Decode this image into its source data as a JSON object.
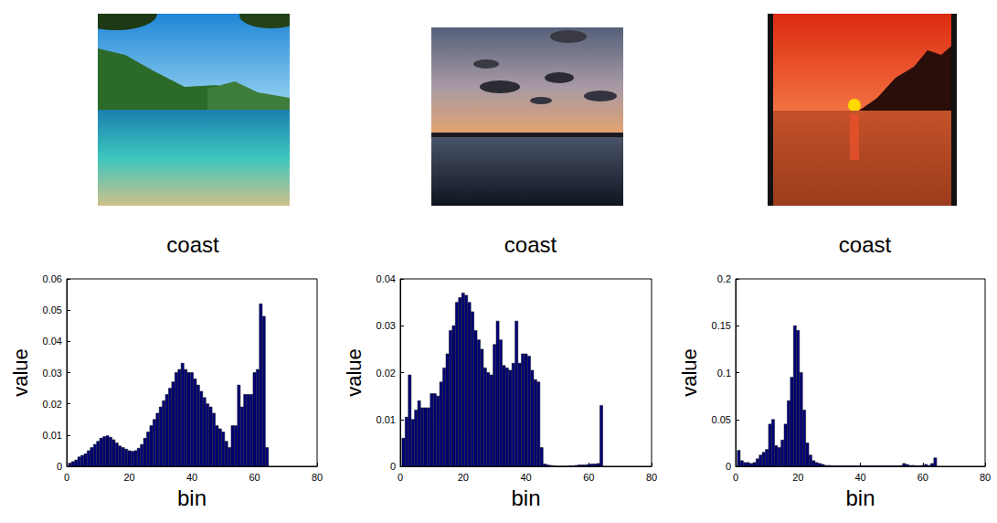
{
  "chart_data": [
    {
      "type": "bar",
      "title": "coast",
      "xlabel": "bin",
      "ylabel": "value",
      "color": "#00007a",
      "x": [
        1,
        2,
        3,
        4,
        5,
        6,
        7,
        8,
        9,
        10,
        11,
        12,
        13,
        14,
        15,
        16,
        17,
        18,
        19,
        20,
        21,
        22,
        23,
        24,
        25,
        26,
        27,
        28,
        29,
        30,
        31,
        32,
        33,
        34,
        35,
        36,
        37,
        38,
        39,
        40,
        41,
        42,
        43,
        44,
        45,
        46,
        47,
        48,
        49,
        50,
        51,
        52,
        53,
        54,
        55,
        56,
        57,
        58,
        59,
        60,
        61,
        62,
        63,
        64
      ],
      "values": [
        0.001,
        0.0015,
        0.002,
        0.003,
        0.0035,
        0.004,
        0.005,
        0.006,
        0.007,
        0.008,
        0.009,
        0.0095,
        0.0098,
        0.0093,
        0.0085,
        0.0075,
        0.0065,
        0.006,
        0.0055,
        0.005,
        0.0048,
        0.005,
        0.0058,
        0.007,
        0.009,
        0.011,
        0.013,
        0.015,
        0.017,
        0.019,
        0.021,
        0.023,
        0.025,
        0.027,
        0.03,
        0.031,
        0.033,
        0.031,
        0.03,
        0.03,
        0.028,
        0.026,
        0.024,
        0.022,
        0.02,
        0.019,
        0.017,
        0.013,
        0.012,
        0.011,
        0.008,
        0.006,
        0.013,
        0.013,
        0.026,
        0.019,
        0.023,
        0.023,
        0.023,
        0.03,
        0.031,
        0.052,
        0.048,
        0.006
      ],
      "xlim": [
        0,
        80
      ],
      "xticks": [
        0,
        20,
        40,
        60,
        80
      ],
      "ylim": [
        0,
        0.06
      ],
      "yticks": [
        0,
        0.01,
        0.02,
        0.03,
        0.04,
        0.05,
        0.06
      ]
    },
    {
      "type": "bar",
      "title": "coast",
      "xlabel": "bin",
      "ylabel": "value",
      "color": "#00007a",
      "x": [
        1,
        2,
        3,
        4,
        5,
        6,
        7,
        8,
        9,
        10,
        11,
        12,
        13,
        14,
        15,
        16,
        17,
        18,
        19,
        20,
        21,
        22,
        23,
        24,
        25,
        26,
        27,
        28,
        29,
        30,
        31,
        32,
        33,
        34,
        35,
        36,
        37,
        38,
        39,
        40,
        41,
        42,
        43,
        44,
        45,
        46,
        47,
        48,
        49,
        50,
        51,
        52,
        53,
        54,
        55,
        56,
        57,
        58,
        59,
        60,
        61,
        62,
        63,
        64
      ],
      "values": [
        0.006,
        0.0105,
        0.0195,
        0.01,
        0.012,
        0.014,
        0.0125,
        0.0125,
        0.0125,
        0.0155,
        0.0155,
        0.015,
        0.018,
        0.021,
        0.024,
        0.029,
        0.03,
        0.035,
        0.036,
        0.037,
        0.0365,
        0.035,
        0.033,
        0.029,
        0.027,
        0.025,
        0.021,
        0.02,
        0.0195,
        0.026,
        0.031,
        0.027,
        0.0215,
        0.021,
        0.0205,
        0.022,
        0.031,
        0.022,
        0.024,
        0.024,
        0.0235,
        0.0205,
        0.0185,
        0.018,
        0.004,
        0.0005,
        0.0003,
        0.0002,
        0.0001,
        0,
        0,
        0,
        0,
        0.0001,
        0.0001,
        0.0002,
        0.0003,
        0.0003,
        0.0003,
        0.0004,
        0.0005,
        0.0005,
        0.0006,
        0.013
      ],
      "xlim": [
        0,
        80
      ],
      "xticks": [
        0,
        20,
        40,
        60,
        80
      ],
      "ylim": [
        0,
        0.04
      ],
      "yticks": [
        0,
        0.01,
        0.02,
        0.03,
        0.04
      ]
    },
    {
      "type": "bar",
      "title": "coast",
      "xlabel": "bin",
      "ylabel": "value",
      "color": "#00007a",
      "x": [
        1,
        2,
        3,
        4,
        5,
        6,
        7,
        8,
        9,
        10,
        11,
        12,
        13,
        14,
        15,
        16,
        17,
        18,
        19,
        20,
        21,
        22,
        23,
        24,
        25,
        26,
        27,
        28,
        29,
        30,
        31,
        32,
        33,
        34,
        35,
        36,
        37,
        38,
        39,
        40,
        41,
        42,
        43,
        44,
        45,
        46,
        47,
        48,
        49,
        50,
        51,
        52,
        53,
        54,
        55,
        56,
        57,
        58,
        59,
        60,
        61,
        62,
        63,
        64
      ],
      "values": [
        0.017,
        0.006,
        0.004,
        0.004,
        0.003,
        0.004,
        0.008,
        0.012,
        0.015,
        0.018,
        0.045,
        0.05,
        0.022,
        0.02,
        0.028,
        0.045,
        0.07,
        0.095,
        0.15,
        0.145,
        0.1,
        0.06,
        0.025,
        0.012,
        0.006,
        0.004,
        0.003,
        0.002,
        0.001,
        0.001,
        0.0005,
        0.0005,
        0.0005,
        0.0005,
        0.0005,
        0.0005,
        0.0005,
        0.0005,
        0.0005,
        0.0005,
        0.0005,
        0.0005,
        0.0005,
        0.0005,
        0.0005,
        0.0005,
        0.0005,
        0.0005,
        0.0005,
        0.0005,
        0.0005,
        0.0005,
        0.0008,
        0.003,
        0.002,
        0.001,
        0.001,
        0.0005,
        0.0005,
        0.001,
        0.002,
        0.001,
        0.003,
        0.009
      ],
      "xlim": [
        0,
        80
      ],
      "xticks": [
        0,
        20,
        40,
        60,
        80
      ],
      "ylim": [
        0,
        0.2
      ],
      "yticks": [
        0,
        0.05,
        0.1,
        0.15,
        0.2
      ]
    }
  ]
}
